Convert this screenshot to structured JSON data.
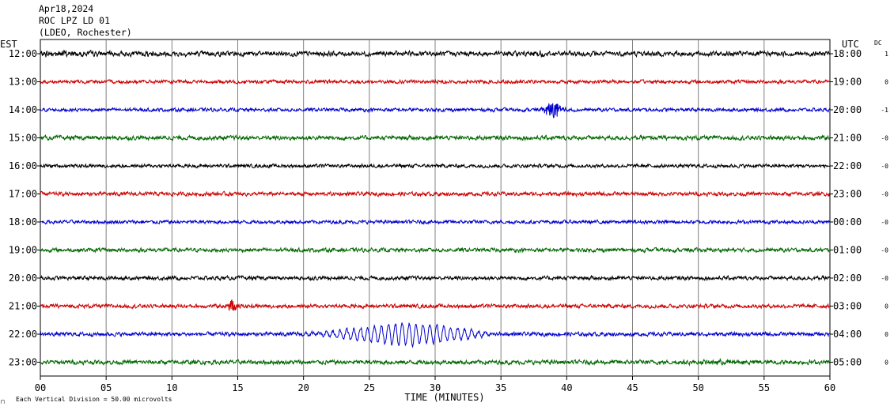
{
  "header": {
    "date": "Apr18,2024",
    "station": "ROC LPZ LD 01",
    "network": "(LDEO, Rochester)"
  },
  "left_zone_label": "EST",
  "right_zone_label": "UTC",
  "dc_label": "DC",
  "footer": {
    "x_axis_title": "TIME (MINUTES)",
    "scale_note": "Each Vertical Division =   50.00 microvolts"
  },
  "colors": {
    "black": "#000000",
    "red": "#cc0000",
    "blue": "#0000cc",
    "green": "#006600",
    "grid": "#808080"
  },
  "chart_data": {
    "type": "line",
    "xlim": [
      0,
      60
    ],
    "x_ticks": [
      "00",
      "05",
      "10",
      "15",
      "20",
      "25",
      "30",
      "35",
      "40",
      "45",
      "50",
      "55",
      "60"
    ],
    "grid": "vertical lines every 5 minutes",
    "rows": [
      {
        "est": "12:00",
        "utc": "18:00",
        "dc": "1",
        "color": "black",
        "amplitude": 0.25,
        "events": [
          {
            "t": 1.8,
            "dur": 3.0,
            "amp": 0.15
          },
          {
            "t": 8.5,
            "dur": 1.5,
            "amp": 0.1
          },
          {
            "t": 38.0,
            "dur": 1.0,
            "amp": 0.1
          }
        ]
      },
      {
        "est": "13:00",
        "utc": "19:00",
        "dc": "0",
        "color": "red",
        "amplitude": 0.18,
        "events": []
      },
      {
        "est": "14:00",
        "utc": "20:00",
        "dc": "-1",
        "color": "blue",
        "amplitude": 0.18,
        "events": [
          {
            "t": 39.0,
            "dur": 1.0,
            "amp": 0.6
          }
        ]
      },
      {
        "est": "15:00",
        "utc": "21:00",
        "dc": "-0",
        "color": "green",
        "amplitude": 0.22,
        "events": []
      },
      {
        "est": "16:00",
        "utc": "22:00",
        "dc": "-0",
        "color": "black",
        "amplitude": 0.18,
        "events": []
      },
      {
        "est": "17:00",
        "utc": "23:00",
        "dc": "-0",
        "color": "red",
        "amplitude": 0.2,
        "events": []
      },
      {
        "est": "18:00",
        "utc": "00:00",
        "dc": "-0",
        "color": "blue",
        "amplitude": 0.18,
        "events": []
      },
      {
        "est": "19:00",
        "utc": "01:00",
        "dc": "-0",
        "color": "green",
        "amplitude": 0.2,
        "events": []
      },
      {
        "est": "20:00",
        "utc": "02:00",
        "dc": "-0",
        "color": "black",
        "amplitude": 0.2,
        "events": []
      },
      {
        "est": "21:00",
        "utc": "03:00",
        "dc": "0",
        "color": "red",
        "amplitude": 0.2,
        "events": [
          {
            "t": 14.6,
            "dur": 0.5,
            "amp": 0.55
          }
        ]
      },
      {
        "est": "22:00",
        "utc": "04:00",
        "dc": "0",
        "color": "blue",
        "amplitude": 0.2,
        "events": [
          {
            "t": 27.8,
            "dur": 7.0,
            "amp": 0.75,
            "kind": "surface"
          }
        ]
      },
      {
        "est": "23:00",
        "utc": "05:00",
        "dc": "0",
        "color": "green",
        "amplitude": 0.22,
        "events": [
          {
            "t": 52.0,
            "dur": 3.0,
            "amp": 0.12
          }
        ]
      }
    ]
  }
}
